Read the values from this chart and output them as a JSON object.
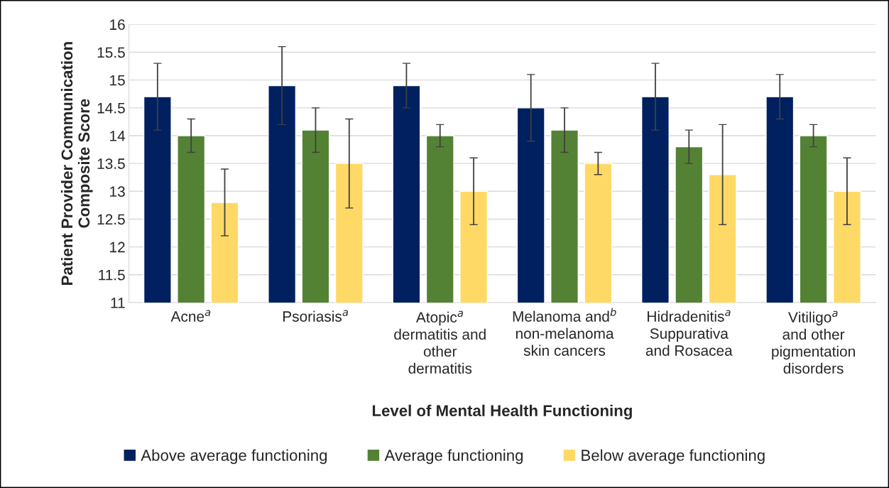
{
  "chart_data": {
    "type": "bar",
    "xlabel": "Level of Mental Health Functioning",
    "ylabel": "Patient Provider Communication\nComposite Score",
    "categories": [
      "Acne$^{a}$",
      "Psoriasis$^{a}$",
      "Atopic$^{a}$\ndermatitis and\nother\ndermatitis",
      "Melanoma and$^{b}$\nnon-melanoma\nskin cancers",
      "Hidradenitis$^{a}$\nSuppurativa\nand Rosacea",
      "Vitiligo$^{a}$\nand other\npigmentation\ndisorders"
    ],
    "series": [
      {
        "name": "Above average functioning",
        "color": "#002060",
        "values": [
          14.7,
          14.9,
          14.9,
          14.5,
          14.7,
          14.7
        ],
        "errors": [
          0.6,
          0.7,
          0.4,
          0.6,
          0.6,
          0.4
        ]
      },
      {
        "name": "Average functioning",
        "color": "#548235",
        "values": [
          14.0,
          14.1,
          14.0,
          14.1,
          13.8,
          14.0
        ],
        "errors": [
          0.3,
          0.4,
          0.2,
          0.4,
          0.3,
          0.2
        ]
      },
      {
        "name": "Below average functioning",
        "color": "#FFD966",
        "values": [
          12.8,
          13.5,
          13.0,
          13.5,
          13.3,
          13.0
        ],
        "errors": [
          0.6,
          0.8,
          0.6,
          0.2,
          0.9,
          0.6
        ]
      }
    ],
    "ylim": [
      11,
      16
    ],
    "yticks": [
      11,
      11.5,
      12,
      12.5,
      13,
      13.5,
      14,
      14.5,
      15,
      15.5,
      16
    ],
    "grid": "y",
    "legend": "bottom"
  }
}
